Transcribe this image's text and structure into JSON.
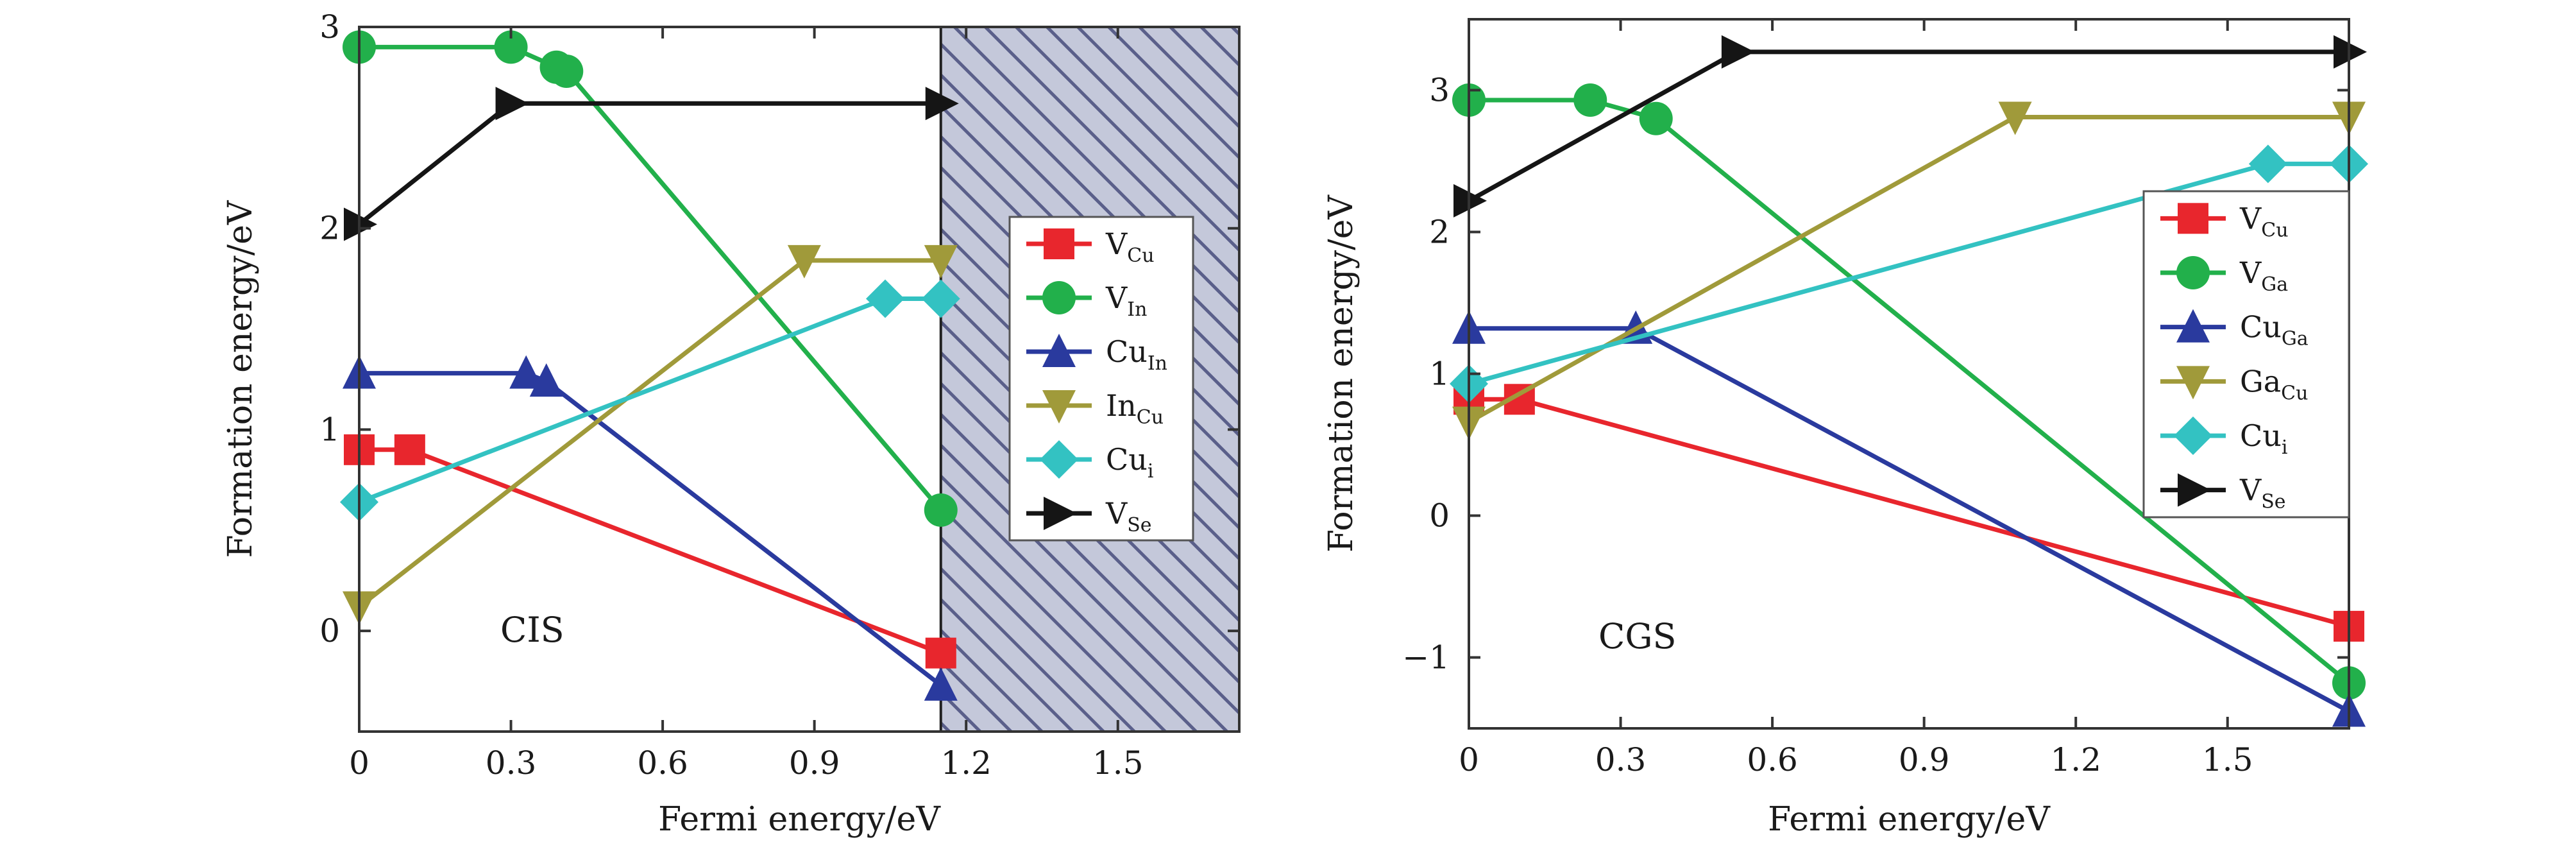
{
  "chart_data": [
    {
      "type": "line",
      "annotation": "CIS",
      "xlabel": "Fermi energy/eV",
      "ylabel": "Formation energy/eV",
      "xlim": [
        0,
        1.74
      ],
      "ylim": [
        -0.5,
        3.0
      ],
      "xticks": [
        "0",
        "0.3",
        "0.6",
        "0.9",
        "1.2",
        "1.5"
      ],
      "yticks": [
        "0",
        "1",
        "2",
        "3"
      ],
      "shaded_region": {
        "from": 1.15,
        "to": 1.74,
        "pattern": "diagonal hatch"
      },
      "legend_position": "right",
      "series": [
        {
          "name": "V",
          "sub": "Cu",
          "color": "#e8262d",
          "marker": "square",
          "x": [
            0,
            0.1,
            1.15
          ],
          "y": [
            0.9,
            0.9,
            -0.11
          ]
        },
        {
          "name": "V",
          "sub": "In",
          "color": "#22b04b",
          "marker": "circle",
          "x": [
            0,
            0.3,
            0.39,
            0.41,
            1.15
          ],
          "y": [
            2.9,
            2.9,
            2.8,
            2.78,
            0.6
          ]
        },
        {
          "name": "Cu",
          "sub": "In",
          "color": "#2a3a9e",
          "marker": "triangle-up",
          "x": [
            0,
            0.33,
            0.37,
            1.15
          ],
          "y": [
            1.28,
            1.28,
            1.24,
            -0.27
          ]
        },
        {
          "name": "In",
          "sub": "Cu",
          "color": "#a09a3a",
          "marker": "triangle-down",
          "x": [
            0,
            0.88,
            1.15
          ],
          "y": [
            0.12,
            1.84,
            1.84
          ]
        },
        {
          "name": "Cu",
          "sub": "i",
          "color": "#33c2c2",
          "marker": "diamond",
          "x": [
            0,
            1.04,
            1.15
          ],
          "y": [
            0.64,
            1.65,
            1.65
          ]
        },
        {
          "name": "V",
          "sub": "Se",
          "color": "#151515",
          "marker": "triangle-right",
          "x": [
            0,
            0.3,
            1.15
          ],
          "y": [
            2.02,
            2.62,
            2.62
          ]
        }
      ]
    },
    {
      "type": "line",
      "annotation": "CGS",
      "xlabel": "Fermi energy/eV",
      "ylabel": "Formation energy/eV",
      "xlim": [
        0,
        1.74
      ],
      "ylim": [
        -1.5,
        3.5
      ],
      "xticks": [
        "0",
        "0.3",
        "0.6",
        "0.9",
        "1.2",
        "1.5"
      ],
      "yticks": [
        "−1",
        "0",
        "1",
        "2",
        "3"
      ],
      "legend_position": "right",
      "series": [
        {
          "name": "V",
          "sub": "Cu",
          "color": "#e8262d",
          "marker": "square",
          "x": [
            0,
            0.1,
            1.74
          ],
          "y": [
            0.82,
            0.82,
            -0.78
          ]
        },
        {
          "name": "V",
          "sub": "Ga",
          "color": "#22b04b",
          "marker": "circle",
          "x": [
            0,
            0.24,
            0.37,
            1.74
          ],
          "y": [
            2.93,
            2.93,
            2.8,
            -1.18
          ]
        },
        {
          "name": "Cu",
          "sub": "Ga",
          "color": "#2a3a9e",
          "marker": "triangle-up",
          "x": [
            0,
            0.33,
            1.74
          ],
          "y": [
            1.32,
            1.32,
            -1.38
          ]
        },
        {
          "name": "Ga",
          "sub": "Cu",
          "color": "#a09a3a",
          "marker": "triangle-down",
          "x": [
            0,
            1.08,
            1.74
          ],
          "y": [
            0.66,
            2.81,
            2.81
          ]
        },
        {
          "name": "Cu",
          "sub": "i",
          "color": "#33c2c2",
          "marker": "diamond",
          "x": [
            0,
            1.58,
            1.74
          ],
          "y": [
            0.93,
            2.48,
            2.48
          ]
        },
        {
          "name": "V",
          "sub": "Se",
          "color": "#151515",
          "marker": "triangle-right",
          "x": [
            0,
            0.53,
            1.74
          ],
          "y": [
            2.22,
            3.27,
            3.27
          ]
        }
      ]
    }
  ]
}
